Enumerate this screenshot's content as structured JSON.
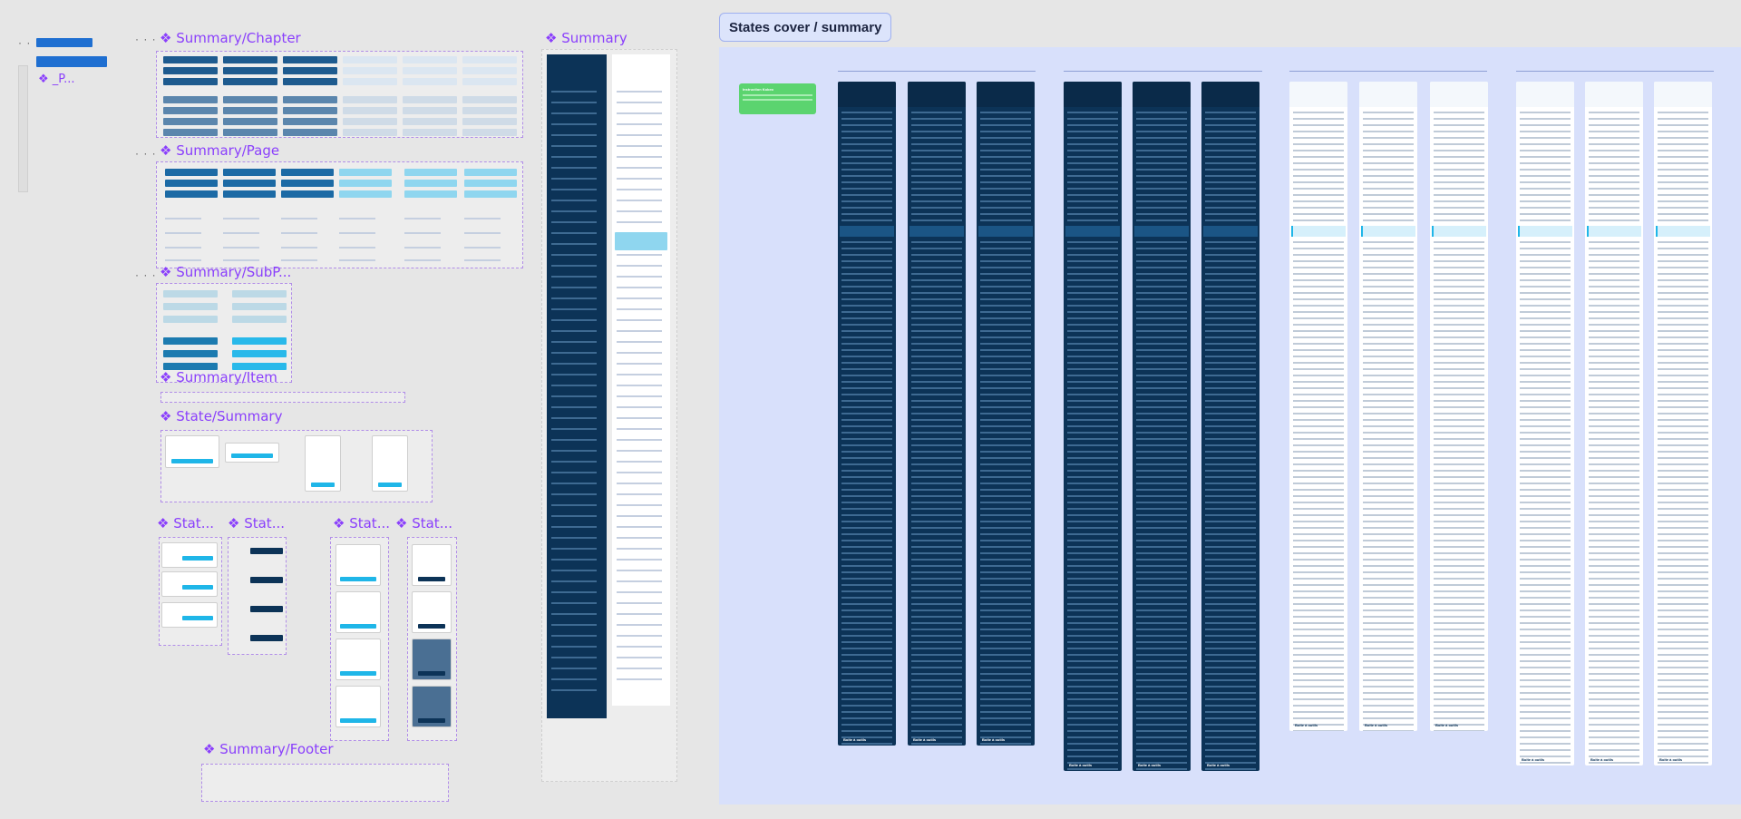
{
  "titles": {
    "summary_chapter": "❖ Summary/Chapter",
    "summary_page": "❖ Summary/Page",
    "summary_subp": "❖ Summary/SubP...",
    "summary_item": "❖ Summary/Item",
    "state_summary": "❖ State/Summary",
    "stat_1": "❖ Stat...",
    "stat_2": "❖ Stat...",
    "stat_3": "❖ Stat...",
    "stat_4": "❖ Stat...",
    "summary_footer": "❖ Summary/Footer",
    "summary": "❖ Summary",
    "left_p": "❖ _P...",
    "states_cover": "States cover / summary"
  },
  "dots": "· · ·",
  "states_board": {
    "note_title": "Instruction Kokeo",
    "columns": [
      {
        "theme": "dark",
        "footer": "Boîte à outils"
      },
      {
        "theme": "dark",
        "footer": "Boîte à outils"
      },
      {
        "theme": "dark",
        "footer": "Boîte à outils"
      },
      {
        "theme": "dark",
        "footer": "Boîte à outils"
      },
      {
        "theme": "dark",
        "footer": "Boîte à outils"
      },
      {
        "theme": "dark",
        "footer": "Boîte à outils"
      },
      {
        "theme": "light",
        "footer": "Boîte à outils"
      },
      {
        "theme": "light",
        "footer": "Boîte à outils"
      },
      {
        "theme": "light",
        "footer": "Boîte à outils"
      },
      {
        "theme": "light",
        "footer": "Boîte à outils"
      },
      {
        "theme": "light",
        "footer": "Boîte à outils"
      },
      {
        "theme": "light",
        "footer": "Boîte à outils"
      }
    ]
  },
  "colors": {
    "accent_purple": "#8a3ffc",
    "navy": "#0c3357",
    "cyan": "#1fb6e8",
    "board_bg": "#d8e0fb"
  }
}
